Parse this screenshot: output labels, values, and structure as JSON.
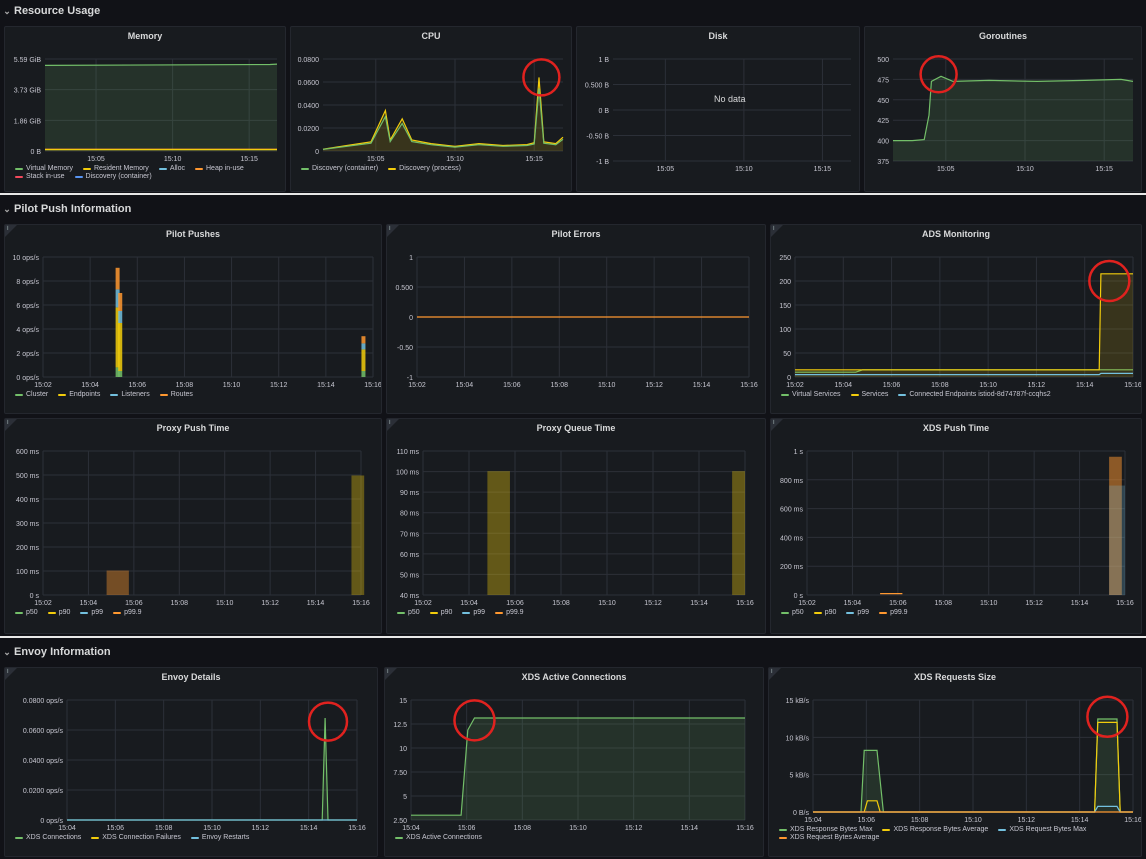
{
  "sections": [
    {
      "title": "Resource Usage"
    },
    {
      "title": "Pilot Push Information"
    },
    {
      "title": "Envoy Information"
    }
  ],
  "colors": {
    "green": "#73bf69",
    "yellow": "#f2cc0c",
    "blue": "#5794f2",
    "orange": "#ff9830",
    "cyan": "#73c0de",
    "red": "#f2495c",
    "annot": "#e0221f"
  },
  "panels": {
    "memory": {
      "title": "Memory",
      "yticks": [
        "5.59 GiB",
        "3.73 GiB",
        "1.86 GiB",
        "0 B"
      ],
      "xticks": [
        "15:05",
        "15:10",
        "15:15"
      ],
      "legend": [
        {
          "label": "Virtual Memory",
          "color": "green"
        },
        {
          "label": "Resident Memory",
          "color": "yellow"
        },
        {
          "label": "Alloc",
          "color": "cyan"
        },
        {
          "label": "Heap in-use",
          "color": "orange"
        },
        {
          "label": "Stack in-use",
          "color": "red"
        },
        {
          "label": "Discovery (container)",
          "color": "blue"
        }
      ]
    },
    "cpu": {
      "title": "CPU",
      "yticks": [
        "0.0800",
        "0.0600",
        "0.0400",
        "0.0200",
        "0"
      ],
      "xticks": [
        "15:05",
        "15:10",
        "15:15"
      ],
      "legend": [
        {
          "label": "Discovery (container)",
          "color": "green"
        },
        {
          "label": "Discovery (process)",
          "color": "yellow"
        }
      ]
    },
    "disk": {
      "title": "Disk",
      "yticks": [
        "1 B",
        "0.500 B",
        "0 B",
        "-0.50 B",
        "-1 B"
      ],
      "xticks": [
        "15:05",
        "15:10",
        "15:15"
      ],
      "nodata": "No data"
    },
    "goroutines": {
      "title": "Goroutines",
      "yticks": [
        "500",
        "475",
        "450",
        "425",
        "400",
        "375"
      ],
      "xticks": [
        "15:05",
        "15:10",
        "15:15"
      ]
    },
    "pilot_pushes": {
      "title": "Pilot Pushes",
      "yticks": [
        "10 ops/s",
        "8 ops/s",
        "6 ops/s",
        "4 ops/s",
        "2 ops/s",
        "0 ops/s"
      ],
      "xticks": [
        "15:02",
        "15:04",
        "15:06",
        "15:08",
        "15:10",
        "15:12",
        "15:14",
        "15:16"
      ],
      "legend": [
        {
          "label": "Cluster",
          "color": "green"
        },
        {
          "label": "Endpoints",
          "color": "yellow"
        },
        {
          "label": "Listeners",
          "color": "cyan"
        },
        {
          "label": "Routes",
          "color": "orange"
        }
      ]
    },
    "pilot_errors": {
      "title": "Pilot Errors",
      "yticks": [
        "1",
        "0.500",
        "0",
        "-0.50",
        "-1"
      ],
      "xticks": [
        "15:02",
        "15:04",
        "15:06",
        "15:08",
        "15:10",
        "15:12",
        "15:14",
        "15:16"
      ]
    },
    "ads_monitoring": {
      "title": "ADS Monitoring",
      "yticks": [
        "250",
        "200",
        "150",
        "100",
        "50",
        "0"
      ],
      "xticks": [
        "15:02",
        "15:04",
        "15:06",
        "15:08",
        "15:10",
        "15:12",
        "15:14",
        "15:16"
      ],
      "legend": [
        {
          "label": "Virtual Services",
          "color": "green"
        },
        {
          "label": "Services",
          "color": "yellow"
        },
        {
          "label": "Connected Endpoints istiod-8d74787f-ccqhs2",
          "color": "cyan"
        }
      ]
    },
    "proxy_push_time": {
      "title": "Proxy Push Time",
      "yticks": [
        "600 ms",
        "500 ms",
        "400 ms",
        "300 ms",
        "200 ms",
        "100 ms",
        "0 s"
      ],
      "xticks": [
        "15:02",
        "15:04",
        "15:06",
        "15:08",
        "15:10",
        "15:12",
        "15:14",
        "15:16"
      ],
      "legend": [
        {
          "label": "p50",
          "color": "green"
        },
        {
          "label": "p90",
          "color": "yellow"
        },
        {
          "label": "p99",
          "color": "cyan"
        },
        {
          "label": "p99.9",
          "color": "orange"
        }
      ]
    },
    "proxy_queue_time": {
      "title": "Proxy Queue Time",
      "yticks": [
        "110 ms",
        "100 ms",
        "90 ms",
        "80 ms",
        "70 ms",
        "60 ms",
        "50 ms",
        "40 ms"
      ],
      "xticks": [
        "15:02",
        "15:04",
        "15:06",
        "15:08",
        "15:10",
        "15:12",
        "15:14",
        "15:16"
      ],
      "legend": [
        {
          "label": "p50",
          "color": "green"
        },
        {
          "label": "p90",
          "color": "yellow"
        },
        {
          "label": "p99",
          "color": "cyan"
        },
        {
          "label": "p99.9",
          "color": "orange"
        }
      ]
    },
    "xds_push_time": {
      "title": "XDS Push Time",
      "yticks": [
        "1 s",
        "800 ms",
        "600 ms",
        "400 ms",
        "200 ms",
        "0 s"
      ],
      "xticks": [
        "15:02",
        "15:04",
        "15:06",
        "15:08",
        "15:10",
        "15:12",
        "15:14",
        "15:16"
      ],
      "legend": [
        {
          "label": "p50",
          "color": "green"
        },
        {
          "label": "p90",
          "color": "yellow"
        },
        {
          "label": "p99",
          "color": "cyan"
        },
        {
          "label": "p99.9",
          "color": "orange"
        }
      ]
    },
    "envoy_details": {
      "title": "Envoy Details",
      "yticks": [
        "0.0800 ops/s",
        "0.0600 ops/s",
        "0.0400 ops/s",
        "0.0200 ops/s",
        "0 ops/s"
      ],
      "xticks": [
        "15:04",
        "15:06",
        "15:08",
        "15:10",
        "15:12",
        "15:14",
        "15:16"
      ],
      "legend": [
        {
          "label": "XDS Connections",
          "color": "green"
        },
        {
          "label": "XDS Connection Failures",
          "color": "yellow"
        },
        {
          "label": "Envoy Restarts",
          "color": "cyan"
        }
      ]
    },
    "xds_active": {
      "title": "XDS Active Connections",
      "yticks": [
        "15",
        "12.5",
        "10",
        "7.50",
        "5",
        "2.50"
      ],
      "xticks": [
        "15:04",
        "15:06",
        "15:08",
        "15:10",
        "15:12",
        "15:14",
        "15:16"
      ],
      "legend": [
        {
          "label": "XDS Active Connections",
          "color": "green"
        }
      ]
    },
    "xds_requests": {
      "title": "XDS Requests Size",
      "yticks": [
        "15 kB/s",
        "10 kB/s",
        "5 kB/s",
        "0 B/s"
      ],
      "xticks": [
        "15:04",
        "15:06",
        "15:08",
        "15:10",
        "15:12",
        "15:14",
        "15:16"
      ],
      "legend": [
        {
          "label": "XDS Response Bytes Max",
          "color": "green"
        },
        {
          "label": "XDS Response Bytes Average",
          "color": "yellow"
        },
        {
          "label": "XDS Request Bytes Max",
          "color": "cyan"
        },
        {
          "label": "XDS Request Bytes Average",
          "color": "orange"
        }
      ]
    }
  },
  "info_glyph": "i"
}
